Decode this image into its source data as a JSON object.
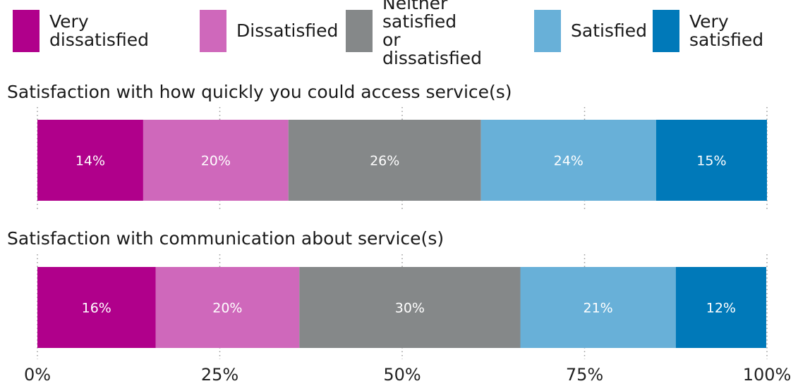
{
  "chart_data": {
    "type": "bar",
    "orientation": "horizontal",
    "stacked": true,
    "legend_position": "top",
    "grid": "dotted vertical",
    "xlim": [
      0,
      100
    ],
    "x_ticks": [
      "0%",
      "25%",
      "50%",
      "75%",
      "100%"
    ],
    "x_tick_values": [
      0,
      25,
      50,
      75,
      100
    ],
    "legend": [
      {
        "label": "Very dissatisfied",
        "color": "#b0008b"
      },
      {
        "label": "Dissatisfied",
        "color": "#cf68bb"
      },
      {
        "label": "Neither satisfied\nor dissatisfied",
        "color": "#858889"
      },
      {
        "label": "Satisfied",
        "color": "#68b0d8"
      },
      {
        "label": "Very satisfied",
        "color": "#0079b9"
      }
    ],
    "categories": [
      "Satisfaction with how quickly you could access service(s)",
      "Satisfaction with communication about service(s)"
    ],
    "series": [
      {
        "name": "Very dissatisfied",
        "values": [
          14.5,
          16.2
        ],
        "labels": [
          "14%",
          "16%"
        ]
      },
      {
        "name": "Dissatisfied",
        "values": [
          19.9,
          19.7
        ],
        "labels": [
          "20%",
          "20%"
        ]
      },
      {
        "name": "Neither satisfied or dissatisfied",
        "values": [
          26.4,
          30.3
        ],
        "labels": [
          "26%",
          "30%"
        ]
      },
      {
        "name": "Satisfied",
        "values": [
          24.0,
          21.3
        ],
        "labels": [
          "24%",
          "21%"
        ]
      },
      {
        "name": "Very satisfied",
        "values": [
          15.2,
          12.4
        ],
        "labels": [
          "15%",
          "12%"
        ]
      }
    ]
  }
}
